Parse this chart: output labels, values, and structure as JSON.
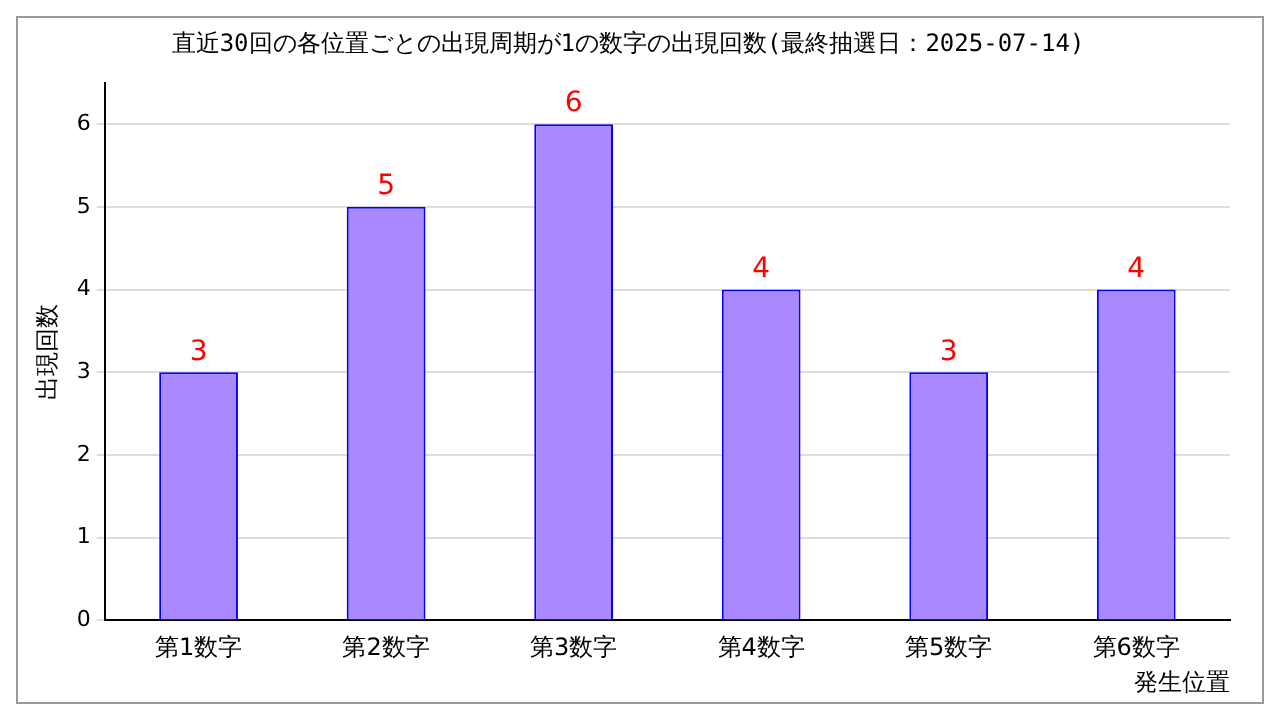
{
  "chart_data": {
    "type": "bar",
    "title": "直近30回の各位置ごとの出現周期が1の数字の出現回数(最終抽選日：2025-07-14)",
    "xlabel": "発生位置",
    "ylabel": "出現回数",
    "categories": [
      "第1数字",
      "第2数字",
      "第3数字",
      "第4数字",
      "第5数字",
      "第6数字"
    ],
    "values": [
      3,
      5,
      6,
      4,
      3,
      4
    ],
    "color": "#aa88ff",
    "ylim": [
      0,
      6.5
    ],
    "yticks": [
      0,
      1,
      2,
      3,
      4,
      5,
      6
    ],
    "grid": "y",
    "data_labels": true,
    "legend": false
  }
}
